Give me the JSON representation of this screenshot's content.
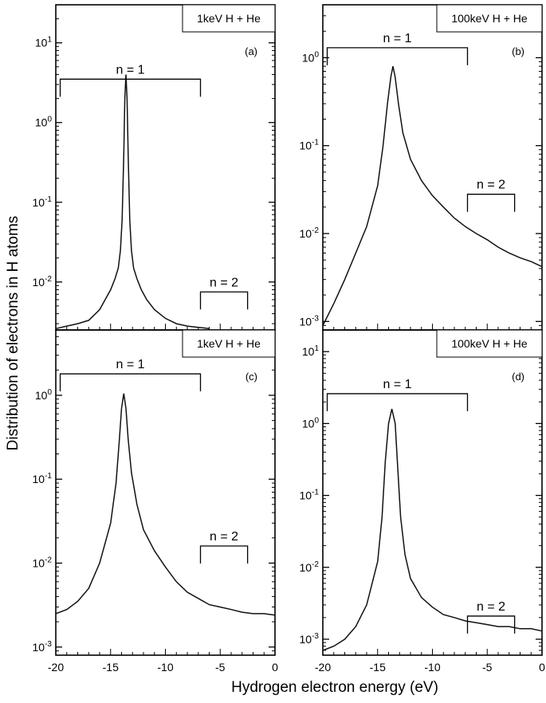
{
  "figure": {
    "ylabel": "Distribution of electrons in H atoms",
    "xlabel": "Hydrogen electron energy (eV)"
  },
  "chart_data": [
    {
      "type": "line",
      "panel_label": "(a)",
      "legend": "1keV H + He",
      "xlim": [
        -20,
        0
      ],
      "ylog": true,
      "ylim": [
        0.0025,
        30
      ],
      "y_ticks": [
        {
          "v": 0.01,
          "label": "10^-2"
        },
        {
          "v": 0.1,
          "label": "10^-1"
        },
        {
          "v": 1,
          "label": "10^0"
        },
        {
          "v": 10,
          "label": "10^1"
        }
      ],
      "x_ticks": [],
      "peak": {
        "x": -13.6,
        "y": 4.0
      },
      "brackets": [
        {
          "label": "n = 1",
          "x0": -19.6,
          "x1": -6.8,
          "y": 3.5
        },
        {
          "label": "n = 2",
          "x0": -6.8,
          "x1": -2.5,
          "y": 0.0075
        }
      ],
      "series": [
        {
          "points": [
            [
              -20.0,
              0.0026
            ],
            [
              -19.0,
              0.0028
            ],
            [
              -18.0,
              0.003
            ],
            [
              -17.0,
              0.0033
            ],
            [
              -16.0,
              0.0045
            ],
            [
              -15.5,
              0.006
            ],
            [
              -15.0,
              0.008
            ],
            [
              -14.6,
              0.011
            ],
            [
              -14.3,
              0.015
            ],
            [
              -14.1,
              0.025
            ],
            [
              -13.95,
              0.06
            ],
            [
              -13.8,
              0.4
            ],
            [
              -13.7,
              2.0
            ],
            [
              -13.6,
              4.0
            ],
            [
              -13.5,
              2.0
            ],
            [
              -13.4,
              0.4
            ],
            [
              -13.25,
              0.06
            ],
            [
              -13.1,
              0.025
            ],
            [
              -12.9,
              0.015
            ],
            [
              -12.6,
              0.011
            ],
            [
              -12.2,
              0.008
            ],
            [
              -11.7,
              0.006
            ],
            [
              -11.0,
              0.0045
            ],
            [
              -10.0,
              0.0035
            ],
            [
              -9.0,
              0.003
            ],
            [
              -8.0,
              0.0028
            ],
            [
              -7.0,
              0.0027
            ],
            [
              -6.0,
              0.0026
            ]
          ]
        }
      ]
    },
    {
      "type": "line",
      "panel_label": "(b)",
      "legend": "100keV H + He",
      "xlim": [
        -20,
        0
      ],
      "ylog": true,
      "ylim": [
        0.0008,
        4
      ],
      "y_ticks": [
        {
          "v": 0.001,
          "label": "10^-3"
        },
        {
          "v": 0.01,
          "label": "10^-2"
        },
        {
          "v": 0.1,
          "label": "10^-1"
        },
        {
          "v": 1,
          "label": "10^0"
        }
      ],
      "x_ticks": [],
      "peak": {
        "x": -13.6,
        "y": 0.8
      },
      "brackets": [
        {
          "label": "n = 1",
          "x0": -19.6,
          "x1": -6.8,
          "y": 1.3
        },
        {
          "label": "n = 2",
          "x0": -6.8,
          "x1": -2.5,
          "y": 0.028
        }
      ],
      "series": [
        {
          "points": [
            [
              -20.0,
              0.0009
            ],
            [
              -19.0,
              0.0016
            ],
            [
              -18.0,
              0.003
            ],
            [
              -17.0,
              0.006
            ],
            [
              -16.0,
              0.012
            ],
            [
              -15.0,
              0.035
            ],
            [
              -14.5,
              0.1
            ],
            [
              -14.1,
              0.3
            ],
            [
              -13.8,
              0.6
            ],
            [
              -13.6,
              0.8
            ],
            [
              -13.4,
              0.6
            ],
            [
              -13.1,
              0.3
            ],
            [
              -12.7,
              0.14
            ],
            [
              -12.0,
              0.07
            ],
            [
              -11.0,
              0.04
            ],
            [
              -10.0,
              0.027
            ],
            [
              -9.0,
              0.02
            ],
            [
              -8.0,
              0.015
            ],
            [
              -7.0,
              0.012
            ],
            [
              -6.0,
              0.01
            ],
            [
              -5.0,
              0.0085
            ],
            [
              -4.0,
              0.007
            ],
            [
              -3.0,
              0.006
            ],
            [
              -2.0,
              0.0053
            ],
            [
              -1.0,
              0.0048
            ],
            [
              0.0,
              0.0042
            ]
          ]
        }
      ]
    },
    {
      "type": "line",
      "panel_label": "(c)",
      "legend": "1keV H + He",
      "xlim": [
        -20,
        0
      ],
      "ylog": true,
      "ylim": [
        0.0008,
        6
      ],
      "y_ticks": [
        {
          "v": 0.001,
          "label": "10^-3"
        },
        {
          "v": 0.01,
          "label": "10^-2"
        },
        {
          "v": 0.1,
          "label": "10^-1"
        },
        {
          "v": 1,
          "label": "10^0"
        }
      ],
      "x_ticks": [],
      "peak": {
        "x": -13.8,
        "y": 1.05
      },
      "brackets": [
        {
          "label": "n = 1",
          "x0": -19.6,
          "x1": -6.8,
          "y": 1.8
        },
        {
          "label": "n = 2",
          "x0": -6.8,
          "x1": -2.5,
          "y": 0.016
        }
      ],
      "series": [
        {
          "points": [
            [
              -20.0,
              0.0025
            ],
            [
              -19.0,
              0.0028
            ],
            [
              -18.0,
              0.0035
            ],
            [
              -17.0,
              0.005
            ],
            [
              -16.0,
              0.01
            ],
            [
              -15.0,
              0.03
            ],
            [
              -14.5,
              0.09
            ],
            [
              -14.2,
              0.3
            ],
            [
              -14.0,
              0.7
            ],
            [
              -13.8,
              1.05
            ],
            [
              -13.6,
              0.7
            ],
            [
              -13.4,
              0.3
            ],
            [
              -13.1,
              0.12
            ],
            [
              -12.6,
              0.05
            ],
            [
              -12.0,
              0.025
            ],
            [
              -11.0,
              0.014
            ],
            [
              -10.0,
              0.009
            ],
            [
              -9.0,
              0.006
            ],
            [
              -8.0,
              0.0045
            ],
            [
              -7.0,
              0.0038
            ],
            [
              -6.0,
              0.0032
            ],
            [
              -5.0,
              0.003
            ],
            [
              -4.0,
              0.0028
            ],
            [
              -3.0,
              0.0026
            ],
            [
              -2.0,
              0.0025
            ],
            [
              -1.0,
              0.0025
            ],
            [
              0.0,
              0.0024
            ]
          ]
        }
      ]
    },
    {
      "type": "line",
      "panel_label": "(d)",
      "legend": "100keV H + He",
      "xlim": [
        -20,
        0
      ],
      "ylog": true,
      "ylim": [
        0.0006,
        20
      ],
      "y_ticks": [
        {
          "v": 0.001,
          "label": "10^-3"
        },
        {
          "v": 0.01,
          "label": "10^-2"
        },
        {
          "v": 0.1,
          "label": "10^-1"
        },
        {
          "v": 1,
          "label": "10^0"
        },
        {
          "v": 10,
          "label": "10^1"
        }
      ],
      "x_ticks": [
        {
          "v": -20,
          "label": "-20"
        },
        {
          "v": -15,
          "label": "-15"
        },
        {
          "v": -10,
          "label": "-10"
        },
        {
          "v": -5,
          "label": "-5"
        },
        {
          "v": 0,
          "label": "0"
        }
      ],
      "peak": {
        "x": -13.7,
        "y": 1.6
      },
      "brackets": [
        {
          "label": "n = 1",
          "x0": -19.6,
          "x1": -6.8,
          "y": 2.6
        },
        {
          "label": "n = 2",
          "x0": -6.8,
          "x1": -2.5,
          "y": 0.0021
        }
      ],
      "series": [
        {
          "points": [
            [
              -20.0,
              0.0007
            ],
            [
              -19.0,
              0.0008
            ],
            [
              -18.0,
              0.001
            ],
            [
              -17.0,
              0.0015
            ],
            [
              -16.0,
              0.003
            ],
            [
              -15.0,
              0.012
            ],
            [
              -14.6,
              0.05
            ],
            [
              -14.3,
              0.3
            ],
            [
              -14.0,
              1.0
            ],
            [
              -13.7,
              1.6
            ],
            [
              -13.4,
              1.0
            ],
            [
              -13.2,
              0.3
            ],
            [
              -12.9,
              0.05
            ],
            [
              -12.5,
              0.015
            ],
            [
              -12.0,
              0.007
            ],
            [
              -11.0,
              0.0038
            ],
            [
              -10.0,
              0.0028
            ],
            [
              -9.0,
              0.0022
            ],
            [
              -8.0,
              0.002
            ],
            [
              -7.0,
              0.0018
            ],
            [
              -6.0,
              0.0017
            ],
            [
              -5.0,
              0.0016
            ],
            [
              -4.0,
              0.0015
            ],
            [
              -3.0,
              0.0015
            ],
            [
              -2.0,
              0.0014
            ],
            [
              -1.0,
              0.0014
            ],
            [
              0.0,
              0.0013
            ]
          ]
        }
      ]
    }
  ]
}
